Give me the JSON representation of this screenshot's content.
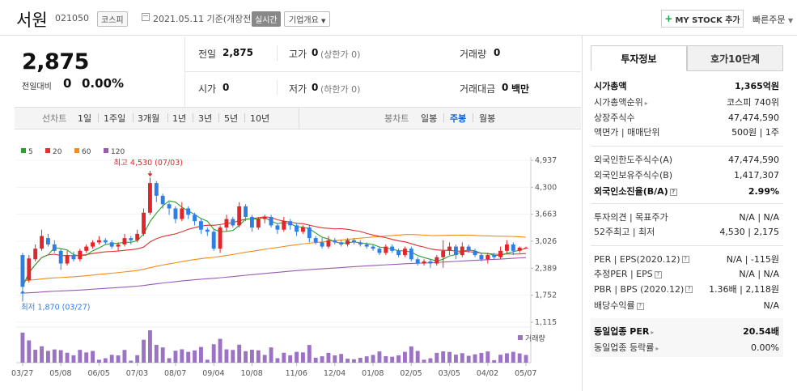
{
  "header": {
    "name": "서원",
    "code": "021050",
    "market_badge": "코스피",
    "date_text": "2021.05.11 기준(개장전)",
    "live_badge": "실시간",
    "company_button": "기업개요",
    "mystock_button": "MY STOCK 추가",
    "quick_order": "빠른주문"
  },
  "price": {
    "current": "2,875",
    "change_label": "전일대비",
    "change": "0",
    "change_pct": "0.00%"
  },
  "quote": {
    "prev_close": {
      "label": "전일",
      "value": "2,875"
    },
    "high": {
      "label": "고가",
      "value": "0",
      "sub": "(상한가 0)"
    },
    "volume": {
      "label": "거래량",
      "value": "0"
    },
    "open": {
      "label": "시가",
      "value": "0"
    },
    "low": {
      "label": "저가",
      "value": "0",
      "sub": "(하한가 0)"
    },
    "turnover": {
      "label": "거래대금",
      "value": "0",
      "unit": "백만"
    }
  },
  "period_bar": {
    "line_label": "선차트",
    "line_items": [
      "1일",
      "1주일",
      "3개월",
      "1년",
      "3년",
      "5년",
      "10년"
    ],
    "candle_label": "봉차트",
    "candle_items": [
      "일봉",
      "주봉",
      "월봉"
    ],
    "active": "주봉"
  },
  "chart_data": {
    "type": "candlestick",
    "legend": [
      {
        "name": "5",
        "color": "#2ca02c"
      },
      {
        "name": "20",
        "color": "#e03030"
      },
      {
        "name": "60",
        "color": "#f28c1a"
      },
      {
        "name": "120",
        "color": "#9b59b6"
      }
    ],
    "y_ticks": [
      "4,937",
      "4,300",
      "3,663",
      "3,026",
      "2,389",
      "1,752",
      "1,115"
    ],
    "ylim": [
      1115,
      4937
    ],
    "x_ticks": [
      "03/27",
      "05/08",
      "06/05",
      "07/03",
      "08/07",
      "09/04",
      "10/08",
      "11/06",
      "12/04",
      "01/08",
      "02/05",
      "03/05",
      "04/02",
      "05/07"
    ],
    "high_annotation": "최고 4,530 (07/03)",
    "low_annotation": "최저 1,870 (03/27)",
    "high_value": 4530,
    "low_value": 1870,
    "volume_label": "거래량",
    "candles": [
      [
        2700,
        1950,
        2750,
        1870
      ],
      [
        2100,
        2620,
        2700,
        2050
      ],
      [
        2600,
        2850,
        2950,
        2550
      ],
      [
        2850,
        3150,
        3300,
        2800
      ],
      [
        3100,
        2950,
        3200,
        2900
      ],
      [
        2950,
        2800,
        3050,
        2750
      ],
      [
        2800,
        2500,
        2850,
        2350
      ],
      [
        2500,
        2700,
        2800,
        2450
      ],
      [
        2700,
        2600,
        2780,
        2550
      ],
      [
        2600,
        2800,
        2850,
        2550
      ],
      [
        2800,
        2900,
        2950,
        2750
      ],
      [
        2900,
        3000,
        3050,
        2850
      ],
      [
        3000,
        3050,
        3150,
        2950
      ],
      [
        3050,
        3000,
        3100,
        2950
      ],
      [
        3000,
        2900,
        3050,
        2850
      ],
      [
        2900,
        2950,
        3000,
        2800
      ],
      [
        2950,
        3100,
        3200,
        2900
      ],
      [
        3100,
        3050,
        3150,
        2950
      ],
      [
        3050,
        3200,
        3300,
        3000
      ],
      [
        3200,
        3700,
        3800,
        3150
      ],
      [
        3700,
        4400,
        4530,
        3650
      ],
      [
        4400,
        4100,
        4450,
        3950
      ],
      [
        4100,
        3900,
        4150,
        3800
      ],
      [
        3900,
        3800,
        3950,
        3650
      ],
      [
        3800,
        3550,
        3850,
        3450
      ],
      [
        3550,
        3800,
        3950,
        3500
      ],
      [
        3800,
        3650,
        3850,
        3550
      ],
      [
        3650,
        3500,
        3700,
        3400
      ],
      [
        3500,
        3300,
        3550,
        3200
      ],
      [
        3300,
        3250,
        3350,
        3150
      ],
      [
        3250,
        2850,
        3300,
        2800
      ],
      [
        2850,
        3350,
        3400,
        2750
      ],
      [
        3350,
        3550,
        3650,
        3250
      ],
      [
        3550,
        3400,
        3600,
        3350
      ],
      [
        3400,
        3850,
        3950,
        3350
      ],
      [
        3850,
        3600,
        3900,
        3500
      ],
      [
        3600,
        3350,
        3650,
        3250
      ],
      [
        3350,
        3550,
        3600,
        3300
      ],
      [
        3550,
        3600,
        3650,
        3450
      ],
      [
        3600,
        3400,
        3650,
        3350
      ],
      [
        3400,
        3300,
        3450,
        3200
      ],
      [
        3300,
        3500,
        3600,
        3250
      ],
      [
        3500,
        3400,
        3550,
        3300
      ],
      [
        3400,
        3250,
        3450,
        3150
      ],
      [
        3250,
        3350,
        3400,
        3200
      ],
      [
        3350,
        3100,
        3400,
        3000
      ],
      [
        3100,
        3000,
        3150,
        2950
      ],
      [
        3000,
        2900,
        3100,
        2850
      ],
      [
        2900,
        3050,
        3150,
        2850
      ],
      [
        3050,
        3000,
        3100,
        2950
      ],
      [
        3000,
        2950,
        3050,
        2900
      ],
      [
        2950,
        3050,
        3100,
        2900
      ],
      [
        3050,
        3000,
        3100,
        2950
      ],
      [
        3000,
        2950,
        3050,
        2900
      ],
      [
        2950,
        2900,
        3000,
        2850
      ],
      [
        2900,
        2850,
        2950,
        2800
      ],
      [
        2850,
        2750,
        2900,
        2700
      ],
      [
        2750,
        2900,
        2950,
        2700
      ],
      [
        2900,
        2800,
        2950,
        2750
      ],
      [
        2800,
        2700,
        2850,
        2650
      ],
      [
        2700,
        2850,
        2900,
        2650
      ],
      [
        2850,
        2600,
        2900,
        2550
      ],
      [
        2600,
        2500,
        2650,
        2450
      ],
      [
        2500,
        2550,
        2600,
        2450
      ],
      [
        2550,
        2500,
        2600,
        2400
      ],
      [
        2500,
        2650,
        2700,
        2450
      ],
      [
        2650,
        2800,
        3050,
        2400
      ],
      [
        2800,
        2900,
        3000,
        2700
      ],
      [
        2900,
        2700,
        2950,
        2600
      ],
      [
        2700,
        2900,
        3000,
        2650
      ],
      [
        2900,
        2800,
        2950,
        2750
      ],
      [
        2800,
        2700,
        2850,
        2650
      ],
      [
        2700,
        2600,
        2750,
        2550
      ],
      [
        2600,
        2700,
        2750,
        2500
      ],
      [
        2700,
        2650,
        2750,
        2600
      ],
      [
        2650,
        2800,
        2900,
        2600
      ],
      [
        2800,
        2950,
        3050,
        2750
      ],
      [
        2950,
        2800,
        3000,
        2700
      ],
      [
        2800,
        2875,
        2900,
        2750
      ],
      [
        2875,
        2875,
        2900,
        2850
      ]
    ]
  },
  "right_panel": {
    "tabs": [
      "투자정보",
      "호가10단계"
    ],
    "market_cap": {
      "label": "시가총액",
      "value": "1,365억원"
    },
    "market_cap_rank": {
      "label": "시가총액순위",
      "value": "코스피 740위"
    },
    "shares": {
      "label": "상장주식수",
      "value": "47,474,590"
    },
    "par_unit": {
      "label": "액면가 | 매매단위",
      "value": "500원 | 1주"
    },
    "foreign_limit": {
      "label": "외국인한도주식수(A)",
      "value": "47,474,590"
    },
    "foreign_hold": {
      "label": "외국인보유주식수(B)",
      "value": "1,417,307"
    },
    "foreign_ratio": {
      "label": "외국인소진율(B/A)",
      "value": "2.99%"
    },
    "opinion": {
      "label": "투자의견 | 목표주가",
      "value": "N/A | N/A"
    },
    "week52": {
      "label": "52주최고 | 최저",
      "value": "4,530 | 2,175"
    },
    "per": {
      "label": "PER | EPS(2020.12)",
      "value": "N/A | -115원"
    },
    "est_per": {
      "label": "추정PER | EPS",
      "value": "N/A | N/A"
    },
    "pbr": {
      "label": "PBR | BPS (2020.12)",
      "value": "1.36배 | 2,118원"
    },
    "dividend": {
      "label": "배당수익률",
      "value": "N/A"
    },
    "sector_per": {
      "label": "동일업종 PER",
      "value": "20.54배"
    },
    "sector_change": {
      "label": "동일업종 등락률",
      "value": "0.00%"
    }
  }
}
